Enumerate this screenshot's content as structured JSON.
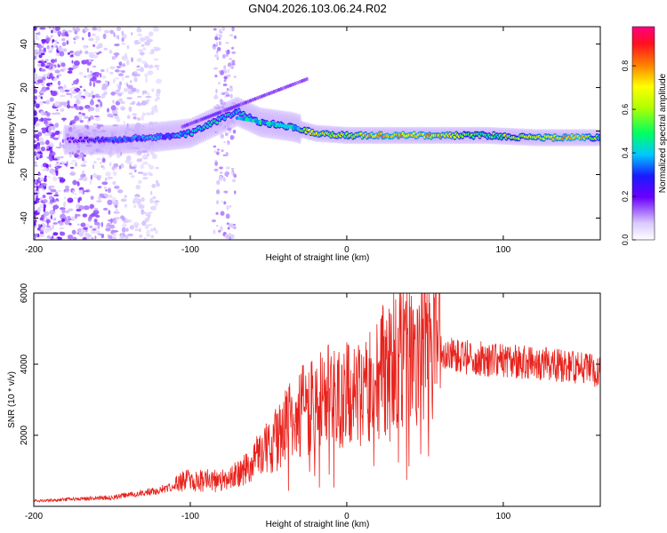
{
  "title": "GN04.2026.103.06.24.R02",
  "chart_data": [
    {
      "type": "heatmap",
      "name": "spectrogram",
      "xlabel": "Height of straight line (km)",
      "ylabel": "Frequency (Hz)",
      "xlim": [
        -200,
        162
      ],
      "ylim": [
        -50,
        48
      ],
      "xticks": [
        -200,
        -100,
        0,
        100
      ],
      "yticks": [
        -40,
        -20,
        0,
        20,
        40
      ],
      "colorbar": {
        "label": "Normalized spectral amplitude",
        "range": [
          0,
          0.98
        ],
        "ticks": [
          0.0,
          0.2,
          0.4,
          0.6,
          0.8
        ]
      },
      "ridge": [
        {
          "x": -175,
          "y": -4,
          "amp": 0.22
        },
        {
          "x": -150,
          "y": -4,
          "amp": 0.35
        },
        {
          "x": -125,
          "y": -3,
          "amp": 0.4
        },
        {
          "x": -100,
          "y": -1,
          "amp": 0.45
        },
        {
          "x": -85,
          "y": 4,
          "amp": 0.5
        },
        {
          "x": -70,
          "y": 9,
          "amp": 0.45
        },
        {
          "x": -55,
          "y": 4,
          "amp": 0.5
        },
        {
          "x": -35,
          "y": 2,
          "amp": 0.55
        },
        {
          "x": -20,
          "y": -1,
          "amp": 0.75
        },
        {
          "x": 0,
          "y": -2,
          "amp": 0.7
        },
        {
          "x": 25,
          "y": -2,
          "amp": 0.85
        },
        {
          "x": 60,
          "y": -2,
          "amp": 0.8
        },
        {
          "x": 90,
          "y": -2,
          "amp": 0.55
        },
        {
          "x": 120,
          "y": -3,
          "amp": 0.75
        },
        {
          "x": 150,
          "y": -3,
          "amp": 0.85
        },
        {
          "x": 160,
          "y": -3,
          "amp": 0.6
        }
      ]
    },
    {
      "type": "line",
      "name": "snr",
      "xlabel": "Height of straight line (km)",
      "ylabel": "SNR (10 * v/v)",
      "xlim": [
        -200,
        162
      ],
      "ylim": [
        0,
        6000
      ],
      "xticks": [
        -200,
        -100,
        0,
        100
      ],
      "yticks": [
        2000,
        4000,
        6000
      ],
      "color": "#e8221c",
      "envelope": [
        {
          "x": -200,
          "y": 150
        },
        {
          "x": -150,
          "y": 250
        },
        {
          "x": -120,
          "y": 450
        },
        {
          "x": -100,
          "y": 750
        },
        {
          "x": -80,
          "y": 700
        },
        {
          "x": -60,
          "y": 1200
        },
        {
          "x": -40,
          "y": 2200
        },
        {
          "x": -20,
          "y": 3000
        },
        {
          "x": 0,
          "y": 3100
        },
        {
          "x": 15,
          "y": 3300
        },
        {
          "x": 30,
          "y": 4300
        },
        {
          "x": 50,
          "y": 4500
        },
        {
          "x": 70,
          "y": 4200
        },
        {
          "x": 100,
          "y": 4100
        },
        {
          "x": 130,
          "y": 4000
        },
        {
          "x": 162,
          "y": 3800
        }
      ]
    }
  ]
}
